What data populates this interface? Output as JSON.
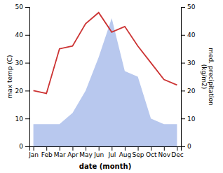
{
  "chart_data": {
    "type": "line",
    "categories": [
      "Jan",
      "Feb",
      "Mar",
      "Apr",
      "May",
      "Jun",
      "Jul",
      "Aug",
      "Sep",
      "Oct",
      "Nov",
      "Dec"
    ],
    "series": [
      {
        "type": "area",
        "color": "#b8c8ee",
        "axis": "y2",
        "values": [
          8,
          8,
          8,
          12,
          20,
          32,
          46,
          27,
          25,
          10,
          8,
          8
        ]
      },
      {
        "type": "line",
        "color": "#cc3333",
        "values": [
          20,
          19,
          35,
          36,
          44,
          48,
          41,
          43,
          36,
          30,
          24,
          22
        ]
      }
    ],
    "xlabel": "date (month)",
    "ylabel": "max temp (C)",
    "y2label": "med. precipitation\n(kg/m2)",
    "ylim": [
      0,
      50
    ],
    "yticks": [
      0,
      10,
      20,
      30,
      40,
      50
    ],
    "y2lim": [
      0,
      50
    ],
    "y2ticks": [
      0,
      10,
      20,
      30,
      40,
      50
    ]
  }
}
